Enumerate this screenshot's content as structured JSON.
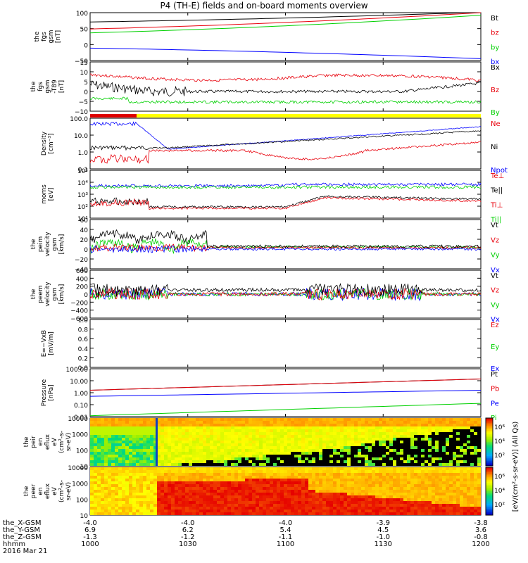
{
  "title": "P4 (TH-E) fields and on-board moments overview",
  "x_axis": {
    "tick_labels": [
      "1000",
      "1030",
      "1100",
      "1130",
      "1200"
    ],
    "ephemeris": [
      {
        "label": "the_X-GSM",
        "values": [
          "-4.0",
          "-4.0",
          "-4.0",
          "-3.9",
          "-3.8"
        ]
      },
      {
        "label": "the_Y-GSM",
        "values": [
          "6.9",
          "6.2",
          "5.4",
          "4.5",
          "3.6"
        ]
      },
      {
        "label": "the_Z-GSM",
        "values": [
          "-1.3",
          "-1.2",
          "-1.1",
          "-1.0",
          "-0.8"
        ]
      },
      {
        "label": "hhmm",
        "values": [
          "1000",
          "1030",
          "1100",
          "1130",
          "1200"
        ]
      }
    ],
    "date": "2016 Mar 21"
  },
  "colorbar": {
    "tick_labels": [
      "10⁶",
      "10⁴",
      "10²"
    ],
    "tick_labels_2": [
      "10⁶",
      "10⁴",
      "10²"
    ],
    "label": "[eV/(cm²-s-sr-eV)] (All Qs)"
  },
  "colors": {
    "black": "#000000",
    "red": "#e8000b",
    "green": "#00d000",
    "blue": "#0000ff",
    "yellow": "#ffff00",
    "yellowlabel": "#d4c000"
  },
  "chart_data": [
    {
      "type": "line",
      "ylabel": [
        "the",
        "fgs",
        "gsm",
        "[nT]"
      ],
      "ytick_labels": [
        "100",
        "50",
        "0",
        "−50"
      ],
      "ylim": [
        -75,
        110
      ],
      "x": [
        1000,
        1200
      ],
      "series": [
        {
          "name": "Bt",
          "color": "black",
          "values": [
            74,
            112
          ]
        },
        {
          "name": "bz",
          "color": "red",
          "values": [
            47,
            110
          ]
        },
        {
          "name": "by",
          "color": "green",
          "values": [
            32,
            100
          ]
        },
        {
          "name": "bx",
          "color": "blue",
          "values": [
            -27,
            -68
          ]
        }
      ]
    },
    {
      "type": "line",
      "ylabel": [
        "the",
        "fgs",
        "gsm",
        "-T89",
        "[nT]"
      ],
      "ytick_labels": [
        "15",
        "10",
        "5",
        "0",
        "−5",
        "−10"
      ],
      "ylim": [
        -15,
        15
      ],
      "series": [
        {
          "name": "Bx",
          "color": "black"
        },
        {
          "name": "Bz",
          "color": "red"
        },
        {
          "name": "By",
          "color": "green"
        }
      ]
    },
    {
      "type": "line",
      "ylabel": [
        "Density",
        "[cm⁻³]"
      ],
      "ytick_labels": [
        "100.0",
        "10.0",
        "1.0",
        "0.1"
      ],
      "ylim": [
        0.06,
        100
      ],
      "scale": "log",
      "series": [
        {
          "name": "Ne",
          "color": "red"
        },
        {
          "name": "Ni",
          "color": "black"
        },
        {
          "name": "Npot",
          "color": "blue"
        }
      ]
    },
    {
      "type": "line",
      "ylabel": [
        "moms",
        "[eV]"
      ],
      "ytick_labels": [
        "10⁵",
        "10⁴",
        "10³",
        "10²",
        "10¹"
      ],
      "ylim": [
        10,
        100000
      ],
      "scale": "log",
      "series": [
        {
          "name": "Te⊥",
          "color": "red"
        },
        {
          "name": "Te||",
          "color": "black"
        },
        {
          "name": "Ti⊥",
          "color": "red"
        },
        {
          "name": "Ti||",
          "color": "green"
        }
      ]
    },
    {
      "type": "line",
      "ylabel": [
        "the",
        "peim",
        "velocity",
        "gsm",
        "[km/s]"
      ],
      "ytick_labels": [
        "60",
        "40",
        "20",
        "0",
        "−20",
        "−40"
      ],
      "ylim": [
        -40,
        60
      ],
      "series": [
        {
          "name": "Vt",
          "color": "black"
        },
        {
          "name": "Vz",
          "color": "red"
        },
        {
          "name": "Vy",
          "color": "green"
        },
        {
          "name": "Vx",
          "color": "blue"
        }
      ]
    },
    {
      "type": "line",
      "ylabel": [
        "the",
        "peem",
        "velocity",
        "gsm",
        "[km/s]"
      ],
      "ytick_labels": [
        "600",
        "400",
        "200",
        "0",
        "−200",
        "−400",
        "−600"
      ],
      "ylim": [
        -600,
        600
      ],
      "series": [
        {
          "name": "Vt",
          "color": "black"
        },
        {
          "name": "Vz",
          "color": "red"
        },
        {
          "name": "Vy",
          "color": "green"
        },
        {
          "name": "Vx",
          "color": "blue"
        }
      ]
    },
    {
      "type": "line",
      "ylabel": [
        "E=−VxB",
        "[mV/m]"
      ],
      "ytick_labels": [
        "1.0",
        "0.8",
        "0.6",
        "0.4",
        "0.2",
        "0.0"
      ],
      "ylim": [
        0,
        1
      ],
      "series": [
        {
          "name": "Ez",
          "color": "red"
        },
        {
          "name": "Ey",
          "color": "green"
        },
        {
          "name": "Ex",
          "color": "blue"
        }
      ]
    },
    {
      "type": "line",
      "ylabel": [
        "Pressure",
        "[nPa]"
      ],
      "ytick_labels": [
        "100.00",
        "10.00",
        "1.00",
        "0.10",
        "0.01"
      ],
      "ylim": [
        0.01,
        100
      ],
      "scale": "log",
      "x": [
        1000,
        1200
      ],
      "series": [
        {
          "name": "Pt",
          "color": "black",
          "values": [
            1.6,
            14
          ]
        },
        {
          "name": "Pb",
          "color": "red",
          "values": [
            1.6,
            14
          ]
        },
        {
          "name": "Pe",
          "color": "blue",
          "values": [
            0.5,
            1.6
          ]
        },
        {
          "name": "Pi",
          "color": "green",
          "values": [
            0.012,
            0.13
          ]
        }
      ]
    },
    {
      "type": "heatmap",
      "ylabel": [
        "the",
        "peir",
        "en",
        "eflux",
        "eV",
        "(cm²-s-",
        "sr-eV)"
      ],
      "ytick_labels": [
        "10000",
        "1000",
        "100",
        "10"
      ],
      "scale": "log"
    },
    {
      "type": "heatmap",
      "ylabel": [
        "the",
        "peer",
        "en",
        "eflux",
        "eV",
        "(cm²-s-",
        "sr-eV)"
      ],
      "ytick_labels": [
        "10000",
        "1000",
        "100",
        "10"
      ],
      "scale": "log"
    }
  ]
}
